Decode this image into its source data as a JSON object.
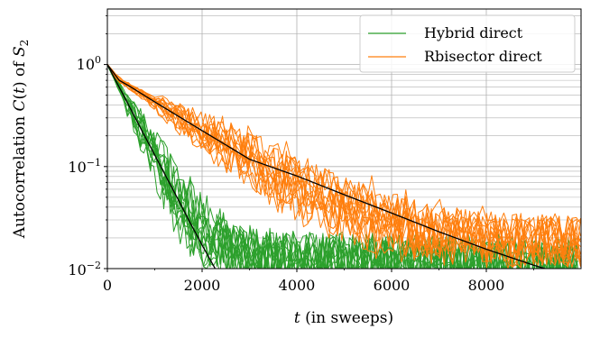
{
  "chart_data": {
    "type": "line",
    "xlabel_parts": [
      "t",
      " (in sweeps)"
    ],
    "ylabel_parts": [
      "Autocorrelation ",
      "C",
      "(",
      "t",
      ") of ",
      "S",
      "2"
    ],
    "x_tick_labels": [
      "0",
      "2000",
      "4000",
      "6000",
      "8000"
    ],
    "y_tick_labels": [
      {
        "base": "10",
        "exp": "0"
      },
      {
        "base": "10",
        "exp": "−1"
      },
      {
        "base": "10",
        "exp": "−2"
      }
    ],
    "xlim": [
      0,
      10000
    ],
    "ylim": [
      0.01,
      3.5
    ],
    "yscale": "log",
    "grid": true,
    "legend_position": "top-right",
    "colors": {
      "hybrid": "#2ca02c",
      "rbisector": "#ff7f0e",
      "fit": "#000000"
    },
    "series": [
      {
        "name": "Hybrid direct",
        "color": "#2ca02c",
        "runs": 14,
        "x": [
          0,
          250,
          500,
          750,
          1000,
          1250,
          1500,
          1750,
          2000,
          2250,
          2500,
          2750,
          3000,
          3500,
          4000,
          5000,
          6000,
          7000,
          8000,
          9000,
          10000
        ],
        "y": [
          1.0,
          0.6,
          0.36,
          0.215,
          0.13,
          0.078,
          0.047,
          0.03,
          0.022,
          0.018,
          0.016,
          0.015,
          0.014,
          0.013,
          0.013,
          0.012,
          0.012,
          0.012,
          0.011,
          0.011,
          0.011
        ]
      },
      {
        "name": "Rbisector direct",
        "color": "#ff7f0e",
        "runs": 14,
        "x": [
          0,
          250,
          500,
          1000,
          1500,
          2000,
          2500,
          3000,
          3500,
          4000,
          4500,
          5000,
          5500,
          6000,
          6500,
          7000,
          7500,
          8000,
          8500,
          9000,
          9500,
          10000
        ],
        "y": [
          1.0,
          0.7,
          0.6,
          0.43,
          0.31,
          0.225,
          0.163,
          0.118,
          0.086,
          0.064,
          0.049,
          0.039,
          0.032,
          0.027,
          0.023,
          0.021,
          0.02,
          0.019,
          0.019,
          0.018,
          0.018,
          0.018
        ]
      }
    ],
    "fits": [
      {
        "of": "Hybrid direct",
        "color": "#000000",
        "x": [
          0,
          250,
          500,
          750,
          1000,
          1250,
          1500,
          1750,
          2000,
          2250,
          2500
        ],
        "y": [
          1.0,
          0.6,
          0.36,
          0.215,
          0.13,
          0.078,
          0.047,
          0.028,
          0.017,
          0.0105,
          0.0065
        ]
      },
      {
        "of": "Rbisector direct",
        "color": "#000000",
        "x": [
          0,
          250,
          500,
          1000,
          2000,
          3000,
          4000,
          5000,
          6000,
          7000,
          8000,
          9000,
          9300
        ],
        "y": [
          1.0,
          0.7,
          0.6,
          0.43,
          0.225,
          0.118,
          0.081,
          0.053,
          0.035,
          0.023,
          0.0155,
          0.0108,
          0.0098
        ]
      }
    ]
  }
}
